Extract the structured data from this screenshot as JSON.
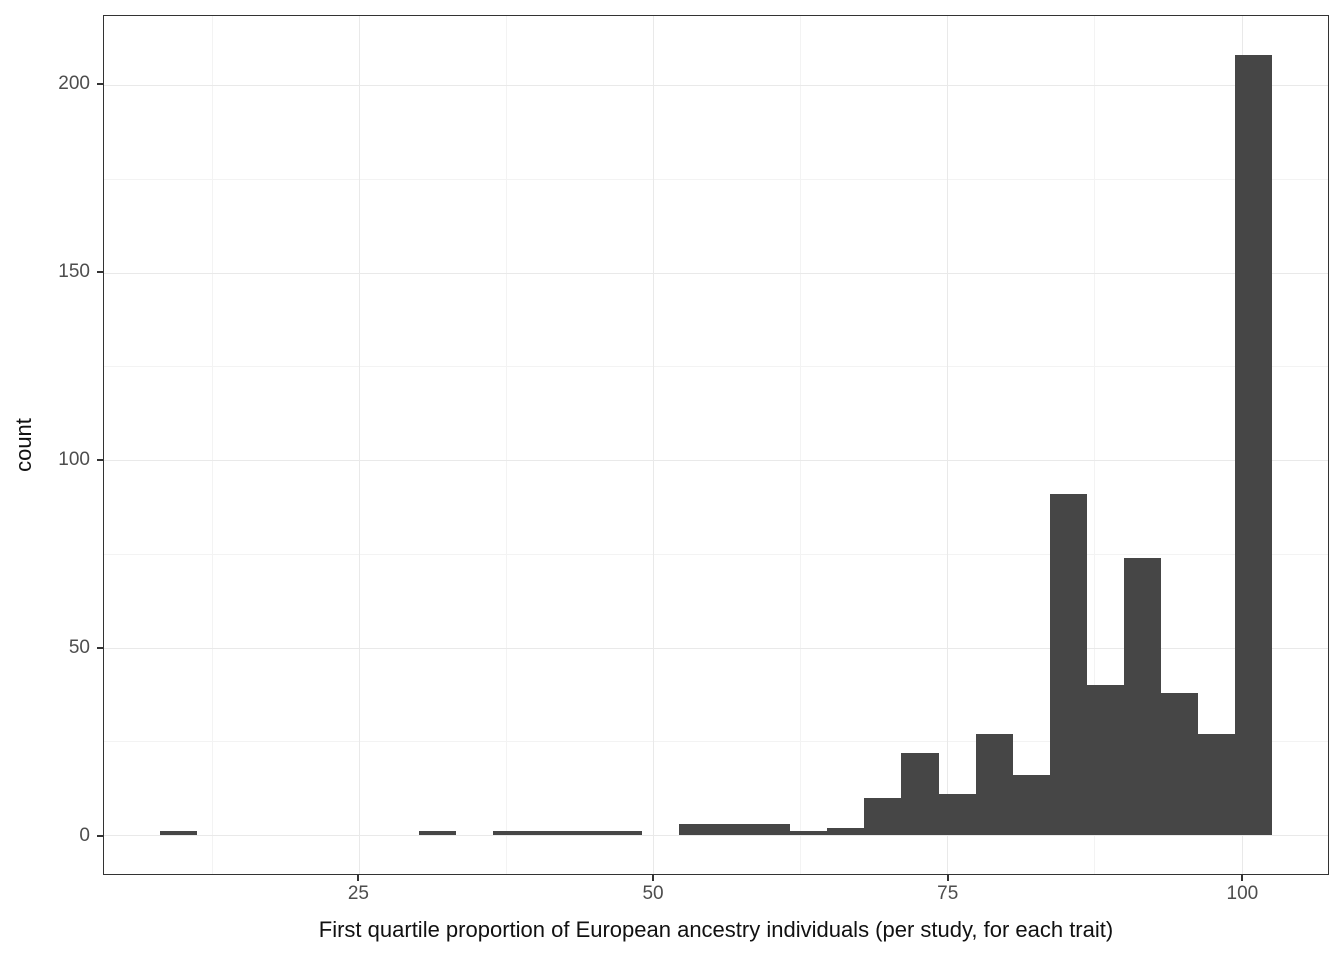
{
  "figure": {
    "background": "#ffffff",
    "x_axis_title": "First quartile proportion of European ancestry individuals (per study, for each trait)",
    "y_axis_title": "count"
  },
  "chart_data": {
    "type": "bar",
    "subtype": "histogram",
    "title": "",
    "xlabel": "First quartile proportion of European ancestry individuals (per study, for each trait)",
    "ylabel": "count",
    "bin_start": 8.06,
    "bin_width": 3.152,
    "counts": [
      1,
      0,
      0,
      0,
      0,
      0,
      0,
      1,
      0,
      1,
      1,
      1,
      1,
      0,
      3,
      3,
      3,
      1,
      2,
      10,
      22,
      11,
      27,
      16,
      91,
      40,
      74,
      38,
      27,
      208
    ],
    "xlim": [
      3.33,
      107.35
    ],
    "ylim": [
      -10.4,
      218.4
    ],
    "x_major_ticks": [
      25,
      50,
      75,
      100
    ],
    "x_minor_ticks": [
      12.5,
      37.5,
      62.5,
      87.5
    ],
    "y_major_ticks": [
      0,
      50,
      100,
      150,
      200
    ],
    "y_minor_ticks": [
      25,
      75,
      125,
      175
    ],
    "grid": true,
    "legend": "none",
    "colors": {
      "bar_fill": "#464646",
      "major_grid": "#e9e9e9",
      "minor_grid": "#f3f3f3",
      "panel_border": "#333333",
      "tick_mark": "#333333",
      "tick_label": "#4d4d4d",
      "axis_title": "#111111",
      "background": "#ffffff"
    }
  }
}
